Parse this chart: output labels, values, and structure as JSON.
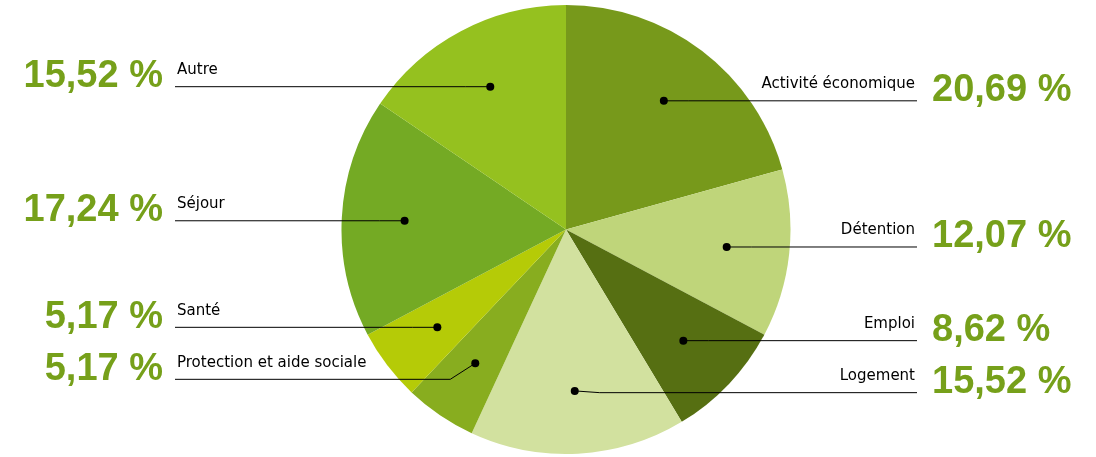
{
  "chart_data": {
    "type": "pie",
    "categories": [
      "Activité économique",
      "Détention",
      "Emploi",
      "Logement",
      "Protection et aide sociale",
      "Santé",
      "Séjour",
      "Autre"
    ],
    "values": [
      20.69,
      12.07,
      8.62,
      15.52,
      5.17,
      5.17,
      17.24,
      15.52
    ],
    "colors": [
      "#77991b",
      "#bfd57a",
      "#566f12",
      "#d2e19f",
      "#88ad1f",
      "#b5cb07",
      "#74aa24",
      "#95c11f"
    ],
    "value_labels": [
      "20,69 %",
      "12,07 %",
      "8,62 %",
      "15,52 %",
      "5,17 %",
      "5,17 %",
      "17,24 %",
      "15,52 %"
    ],
    "legend": false
  }
}
